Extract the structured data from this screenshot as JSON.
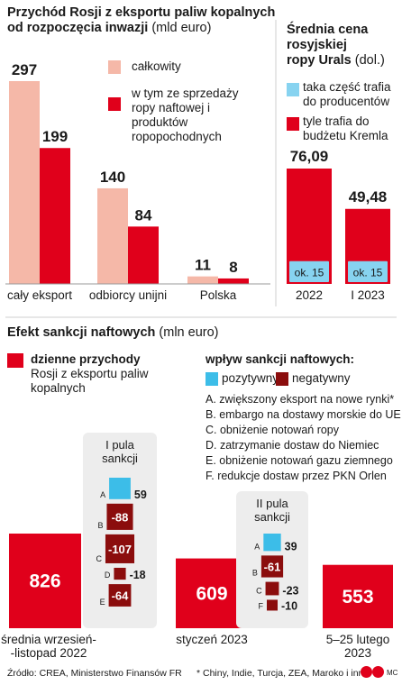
{
  "revenue": {
    "title_line1": "Przychód Rosji z eksportu paliw kopalnych",
    "title_line2": "od rozpoczęcia inwazji",
    "unit": "(mld euro)",
    "legend": [
      "całkowity",
      "w tym ze sprzedaży ropy naftowej i produktów ropopochodnych"
    ]
  },
  "urals": {
    "title_line1": "Średnia cena",
    "title_line2": "rosyjskiej",
    "title_line3": "ropy Urals",
    "unit": "(dol.)",
    "legend": [
      "taka część trafia do producentów",
      "tyle trafia do budżetu Kremla"
    ]
  },
  "effect": {
    "title": "Efekt sankcji naftowych",
    "unit": "(mln euro)",
    "daily_legend_bold": "dzienne przychody",
    "daily_legend_rest": "Rosji z eksportu paliw kopalnych",
    "impact_title": "wpływ sankcji naftowych:",
    "positive": "pozytywny",
    "negative": "negatywny",
    "factors": [
      "A. zwiększony eksport na nowe rynki*",
      "B. embargo na dostawy morskie do UE",
      "C. obniżenie notowań ropy",
      "D. zatrzymanie dostaw do Niemiec",
      "E. obniżenie notowań gazu ziemnego",
      "F. redukcje dostaw przez PKN Orlen"
    ]
  },
  "footer": {
    "source": "Źródło: CREA, Ministerstwo Finansów FR",
    "note": "* Chiny, Indie, Turcja, ZEA, Maroko i inni",
    "credit": "MC"
  },
  "chart_data": [
    {
      "type": "bar",
      "categories": [
        "cały eksport",
        "odbiorcy unijni",
        "Polska"
      ],
      "series": [
        {
          "name": "całkowity",
          "values": [
            297,
            140,
            11
          ]
        },
        {
          "name": "w tym ze sprzedaży ropy naftowej i produktów ropopochodnych",
          "values": [
            199,
            84,
            8
          ]
        }
      ],
      "colors": [
        "#f5b8a8",
        "#e0001b"
      ]
    },
    {
      "type": "bar",
      "categories": [
        "2022",
        "I 2023"
      ],
      "values": [
        76.09,
        49.48
      ],
      "value_labels": [
        "76,09",
        "49,48"
      ],
      "producer_share_label": "ok. 15",
      "producer_share": 15,
      "colors": {
        "kremlin": "#e0001b",
        "producer": "#87d3f0"
      }
    },
    {
      "type": "bar",
      "categories": [
        "średnia wrzesień-\n-listopad 2022",
        "styczeń 2023",
        "5–25 lutego\n2023"
      ],
      "values": [
        826,
        609,
        553
      ],
      "pools": [
        {
          "title": "I pula\nsankcji",
          "items": [
            {
              "letter": "A",
              "value": 59,
              "label": "59"
            },
            {
              "letter": "B",
              "value": -88,
              "label": "-88"
            },
            {
              "letter": "C",
              "value": -107,
              "label": "-107"
            },
            {
              "letter": "D",
              "value": -18,
              "label": "-18"
            },
            {
              "letter": "E",
              "value": -64,
              "label": "-64"
            }
          ]
        },
        {
          "title": "II pula\nsankcji",
          "items": [
            {
              "letter": "A",
              "value": 39,
              "label": "39"
            },
            {
              "letter": "B",
              "value": -61,
              "label": "-61"
            },
            {
              "letter": "C",
              "value": -23,
              "label": "-23"
            },
            {
              "letter": "F",
              "value": -10,
              "label": "-10"
            }
          ]
        }
      ],
      "colors": {
        "daily": "#e0001b",
        "positive": "#3cbde8",
        "negative": "#8b0d0d",
        "pool_bg": "#ededed"
      }
    }
  ]
}
